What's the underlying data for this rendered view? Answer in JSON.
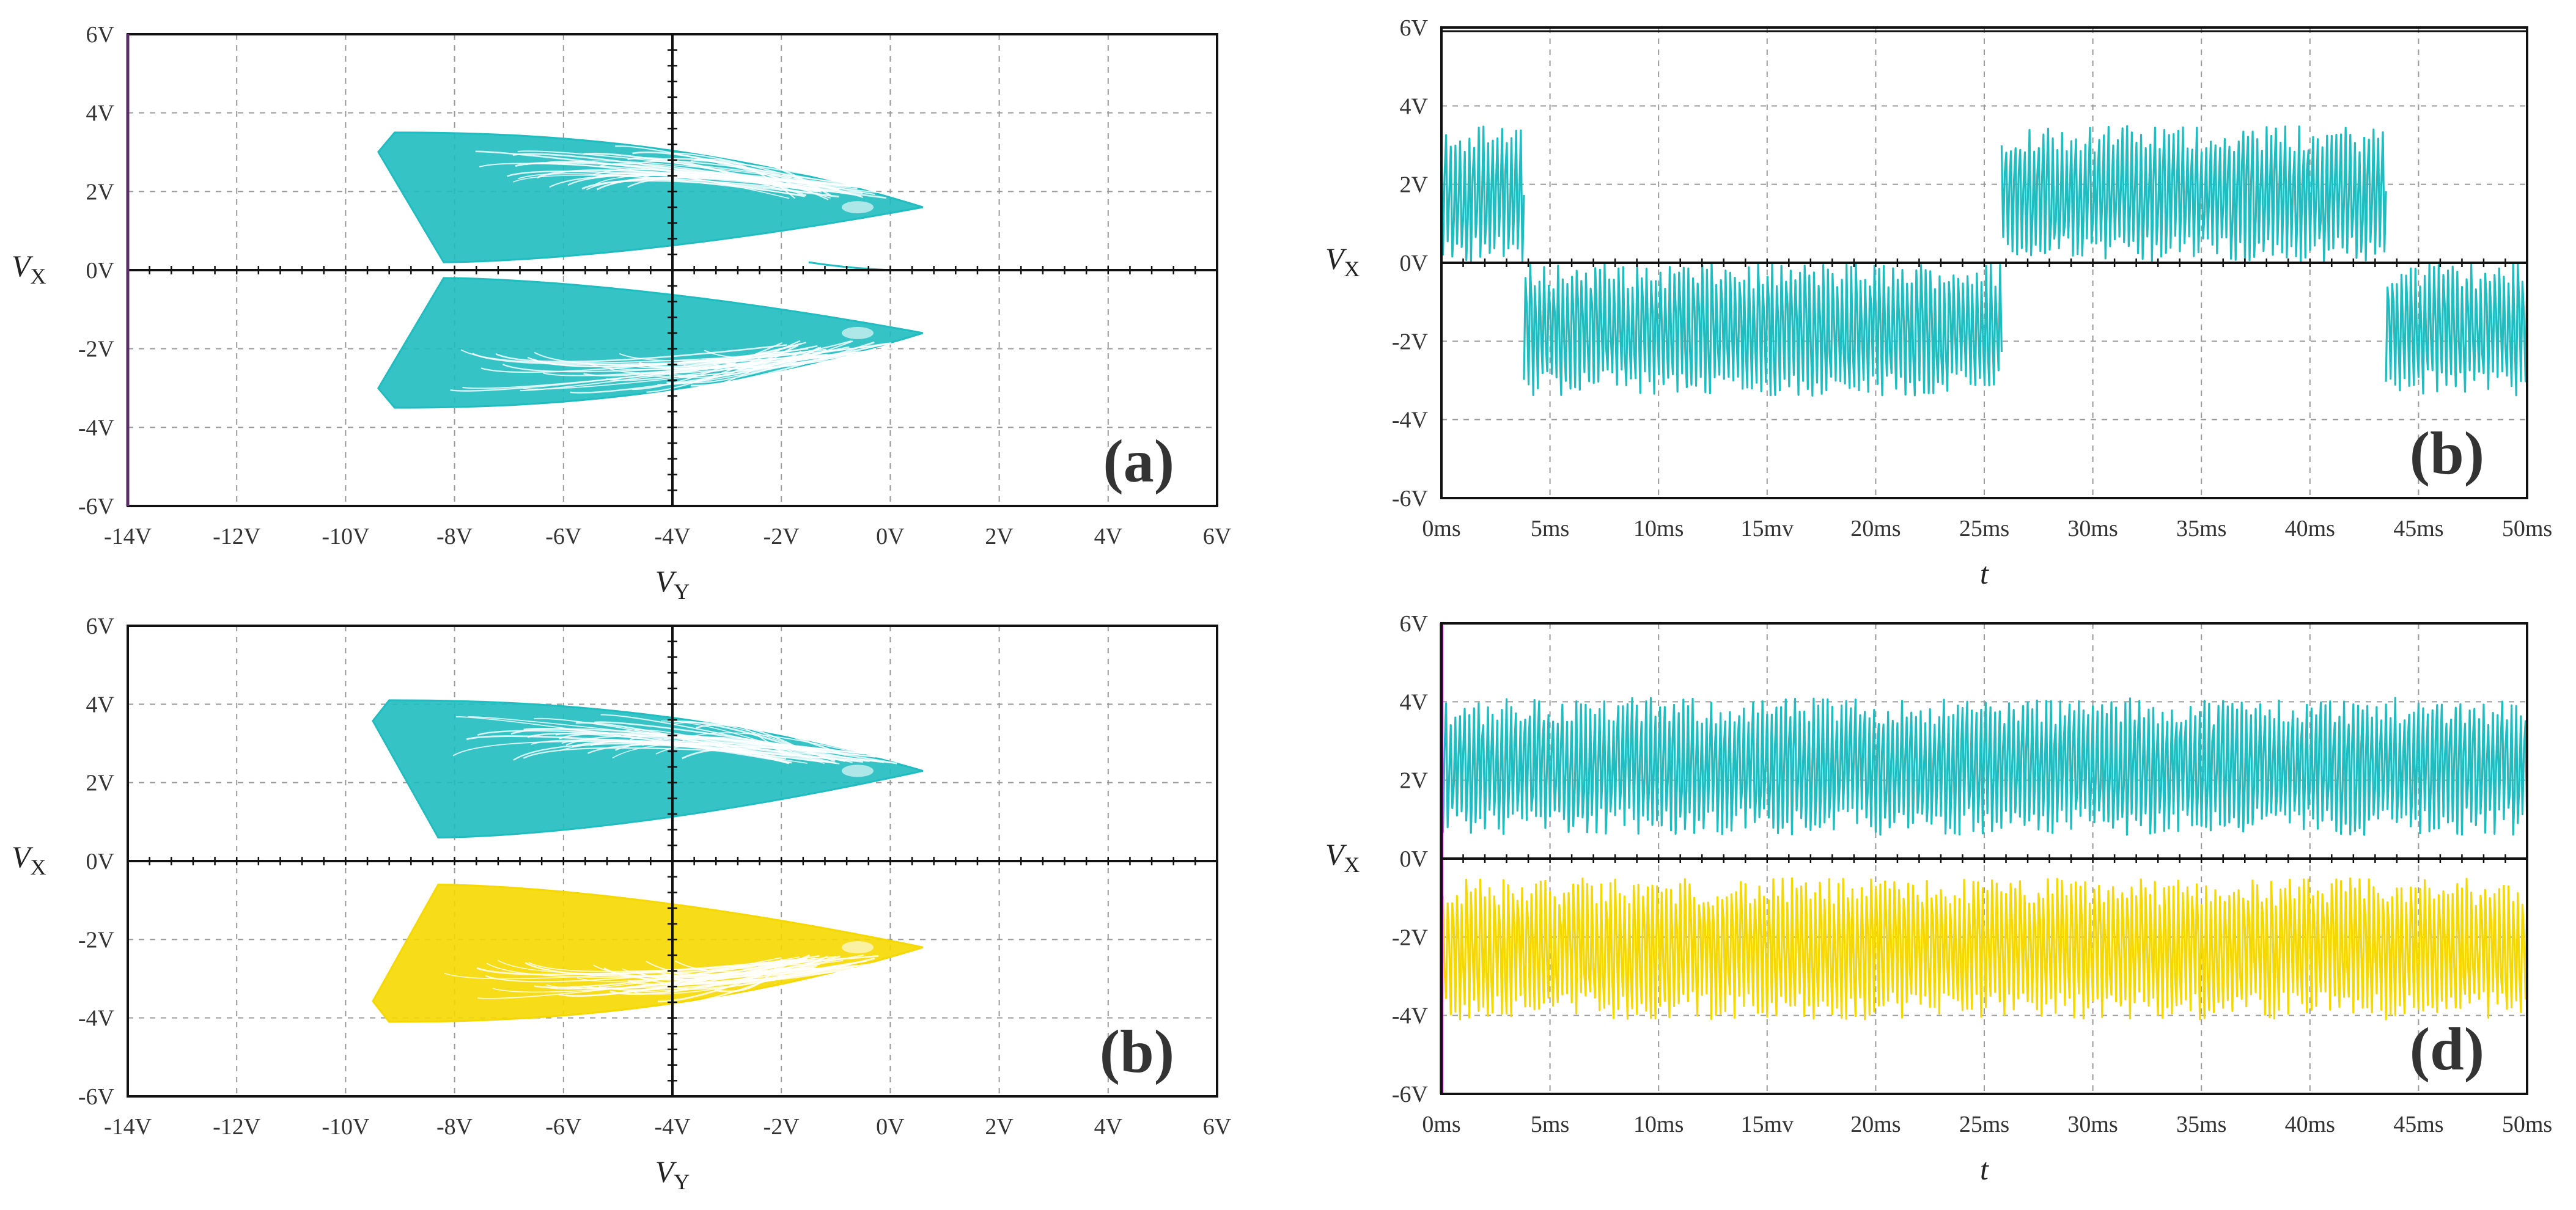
{
  "figure": {
    "panels": [
      "(a)",
      "(b)",
      "(b)",
      "(d)"
    ]
  },
  "chart_data": [
    {
      "type": "scatter",
      "panel_label": "(a)",
      "xlabel": "V",
      "xlabel_sub": "Y",
      "ylabel": "V",
      "ylabel_sub": "X",
      "xlim": [
        -14,
        6
      ],
      "ylim": [
        -6,
        6
      ],
      "x_ticks": [
        "-14V",
        "-12V",
        "-10V",
        "-8V",
        "-6V",
        "-4V",
        "-2V",
        "0V",
        "2V",
        "4V",
        "6V"
      ],
      "y_ticks": [
        "6V",
        "4V",
        "2V",
        "0V",
        "-2V",
        "-4V",
        "-6V"
      ],
      "grid": true,
      "series": [
        {
          "color": "#1fbcc0",
          "description": "double-scroll attractor, both lobes cyan",
          "upper_lobe": {
            "x_range": [
              -9.4,
              0.6
            ],
            "y_range": [
              0.2,
              3.5
            ],
            "tip": [
              0.6,
              1.6
            ]
          },
          "lower_lobe": {
            "x_range": [
              -9.4,
              0.6
            ],
            "y_range": [
              -3.5,
              -0.2
            ],
            "tip": [
              0.6,
              -1.6
            ]
          }
        }
      ]
    },
    {
      "type": "line",
      "panel_label": "(b)",
      "xlabel": "t",
      "ylabel": "V",
      "ylabel_sub": "X",
      "xlim": [
        0,
        50
      ],
      "ylim": [
        -6,
        6
      ],
      "x_ticks": [
        "0ms",
        "5ms",
        "10ms",
        "15mv",
        "20ms",
        "25ms",
        "30ms",
        "35ms",
        "40ms",
        "45ms",
        "50ms"
      ],
      "y_ticks": [
        "6V",
        "4V",
        "2V",
        "0V",
        "-2V",
        "-4V",
        "-6V"
      ],
      "grid": true,
      "series": [
        {
          "color": "#1fbcc0",
          "segments": [
            {
              "t": [
                0,
                3.8
              ],
              "level": "positive",
              "min": 0.0,
              "max": 3.5
            },
            {
              "t": [
                3.8,
                25.8
              ],
              "level": "negative",
              "min": -3.4,
              "max": 0.0
            },
            {
              "t": [
                25.8,
                43.5
              ],
              "level": "positive",
              "min": 0.0,
              "max": 3.5
            },
            {
              "t": [
                43.5,
                50
              ],
              "level": "negative",
              "min": -3.4,
              "max": 0.0
            }
          ]
        }
      ]
    },
    {
      "type": "scatter",
      "panel_label": "(b)",
      "xlabel": "V",
      "xlabel_sub": "Y",
      "ylabel": "V",
      "ylabel_sub": "X",
      "xlim": [
        -14,
        6
      ],
      "ylim": [
        -6,
        6
      ],
      "x_ticks": [
        "-14V",
        "-12V",
        "-10V",
        "-8V",
        "-6V",
        "-4V",
        "-2V",
        "0V",
        "2V",
        "4V",
        "6V"
      ],
      "y_ticks": [
        "6V",
        "4V",
        "2V",
        "0V",
        "-2V",
        "-4V",
        "-6V"
      ],
      "grid": true,
      "series": [
        {
          "color": "#1fbcc0",
          "description": "upper single-scroll attractor",
          "lobe": {
            "x_range": [
              -9.5,
              0.6
            ],
            "y_range": [
              0.6,
              4.1
            ],
            "tip": [
              0.6,
              2.3
            ]
          }
        },
        {
          "color": "#f5d800",
          "description": "lower single-scroll attractor",
          "lobe": {
            "x_range": [
              -9.5,
              0.6
            ],
            "y_range": [
              -4.1,
              -0.6
            ],
            "tip": [
              0.6,
              -2.2
            ]
          }
        }
      ]
    },
    {
      "type": "line",
      "panel_label": "(d)",
      "xlabel": "t",
      "ylabel": "V",
      "ylabel_sub": "X",
      "xlim": [
        0,
        50
      ],
      "ylim": [
        -6,
        6
      ],
      "x_ticks": [
        "0ms",
        "5ms",
        "10ms",
        "15mv",
        "20ms",
        "25ms",
        "30ms",
        "35ms",
        "40ms",
        "45ms",
        "50ms"
      ],
      "y_ticks": [
        "6V",
        "4V",
        "2V",
        "0V",
        "-2V",
        "-4V",
        "-6V"
      ],
      "grid": true,
      "series": [
        {
          "color": "#1fbcc0",
          "segments": [
            {
              "t": [
                0,
                50
              ],
              "level": "positive",
              "min": 0.6,
              "max": 4.1
            }
          ]
        },
        {
          "color": "#f5d800",
          "segments": [
            {
              "t": [
                0,
                50
              ],
              "level": "negative",
              "min": -4.1,
              "max": -0.5
            }
          ]
        }
      ]
    }
  ]
}
